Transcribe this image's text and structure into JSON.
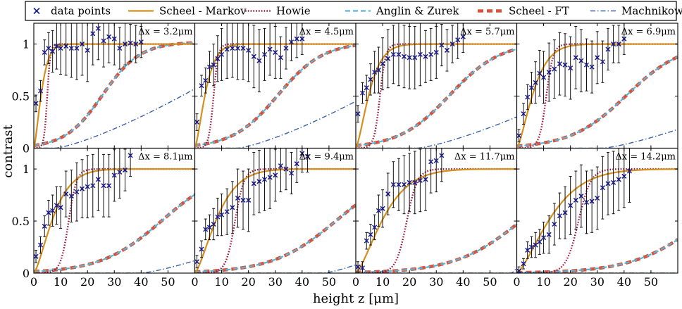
{
  "legend": {
    "entries": [
      {
        "key": "data",
        "label": "data points",
        "color": "#1a1a8c",
        "style": "marker-x"
      },
      {
        "key": "markov",
        "label": "Scheel - Markov",
        "color": "#d4901c",
        "style": "solid"
      },
      {
        "key": "howie",
        "label": "Howie",
        "color": "#9b1b3c",
        "style": "dotted"
      },
      {
        "key": "anglin",
        "label": "Anglin & Zurek",
        "color": "#5ab4d6",
        "style": "dashed"
      },
      {
        "key": "ft",
        "label": "Scheel - FT",
        "color": "#d9513a",
        "style": "thick-dashed"
      },
      {
        "key": "machnik",
        "label": "Machnikowski",
        "color": "#3a62a8",
        "style": "dashdot"
      }
    ]
  },
  "chart_data": {
    "type": "line",
    "xlabel": "height z [μm]",
    "ylabel": "contrast",
    "xlim": [
      0,
      60
    ],
    "ylim": [
      0,
      1.2
    ],
    "xticks": [
      0,
      10,
      20,
      30,
      40,
      50
    ],
    "yticks": [
      0,
      0.5,
      1
    ],
    "ytick_labels": [
      "0",
      "0.5",
      "1"
    ],
    "panels": [
      {
        "label": "Δx = 3.2μm",
        "markov_l": 3.2,
        "howie_z0": 5.0,
        "howie_w": 0.6,
        "ft_z0": 25.6,
        "ft_w": 7.0,
        "machnik": {
          "z0": 30,
          "max": 0.57,
          "end": 60
        },
        "data": [
          [
            0.8,
            0.43,
            0.08
          ],
          [
            2.5,
            0.55,
            0.1
          ],
          [
            4.0,
            0.92,
            0.12
          ],
          [
            5.5,
            0.96,
            0.15
          ],
          [
            7.0,
            0.93,
            0.2
          ],
          [
            8.5,
            0.98,
            0.22
          ],
          [
            10,
            0.96,
            0.25
          ],
          [
            12,
            0.98,
            0.28
          ],
          [
            14,
            0.96,
            0.28
          ],
          [
            16,
            0.96,
            0.3
          ],
          [
            18,
            1.0,
            0.3
          ],
          [
            20,
            0.94,
            0.3
          ],
          [
            22,
            1.1,
            0.3
          ],
          [
            24,
            1.15,
            0.3
          ],
          [
            26,
            1.03,
            0.25
          ],
          [
            28,
            1.07,
            0.25
          ],
          [
            30,
            1.05,
            0.25
          ],
          [
            32,
            0.96,
            0.2
          ],
          [
            34,
            1.0,
            0.2
          ],
          [
            36,
            1.01,
            0.18
          ],
          [
            38,
            1.0,
            0.18
          ],
          [
            40,
            1.02,
            0.15
          ]
        ]
      },
      {
        "label": "Δx = 4.5μm",
        "markov_l": 4.5,
        "howie_z0": 7.0,
        "howie_w": 0.9,
        "ft_z0": 31.0,
        "ft_w": 8.5,
        "machnik": {
          "z0": 38,
          "max": 0.45,
          "end": 60
        },
        "data": [
          [
            0.8,
            0.25,
            0.08
          ],
          [
            2.5,
            0.6,
            0.1
          ],
          [
            4.0,
            0.65,
            0.12
          ],
          [
            5.5,
            0.78,
            0.15
          ],
          [
            7.0,
            0.8,
            0.2
          ],
          [
            8.5,
            0.86,
            0.22
          ],
          [
            10,
            0.9,
            0.25
          ],
          [
            12,
            0.95,
            0.28
          ],
          [
            14,
            0.96,
            0.28
          ],
          [
            16,
            0.96,
            0.3
          ],
          [
            18,
            0.96,
            0.3
          ],
          [
            20,
            0.94,
            0.3
          ],
          [
            22,
            0.88,
            0.3
          ],
          [
            24,
            0.84,
            0.3
          ],
          [
            26,
            0.9,
            0.25
          ],
          [
            28,
            0.95,
            0.25
          ],
          [
            30,
            0.92,
            0.25
          ],
          [
            32,
            0.87,
            0.2
          ],
          [
            34,
            0.96,
            0.2
          ],
          [
            36,
            1.02,
            0.18
          ],
          [
            38,
            1.05,
            0.18
          ],
          [
            40,
            1.05,
            0.15
          ]
        ]
      },
      {
        "label": "Δx = 5.7μm",
        "markov_l": 5.7,
        "howie_z0": 9.0,
        "howie_w": 1.1,
        "ft_z0": 35.0,
        "ft_w": 9.5,
        "machnik": {
          "z0": 45,
          "max": 0.3,
          "end": 60
        },
        "data": [
          [
            0.8,
            0.33,
            0.08
          ],
          [
            2.5,
            0.53,
            0.1
          ],
          [
            4.0,
            0.58,
            0.12
          ],
          [
            5.5,
            0.66,
            0.15
          ],
          [
            7.0,
            0.73,
            0.2
          ],
          [
            8.5,
            0.75,
            0.22
          ],
          [
            10,
            0.81,
            0.25
          ],
          [
            12,
            0.86,
            0.28
          ],
          [
            14,
            0.9,
            0.28
          ],
          [
            16,
            0.9,
            0.3
          ],
          [
            18,
            0.88,
            0.3
          ],
          [
            20,
            0.87,
            0.3
          ],
          [
            22,
            0.87,
            0.3
          ],
          [
            24,
            0.9,
            0.3
          ],
          [
            26,
            0.88,
            0.25
          ],
          [
            28,
            0.9,
            0.25
          ],
          [
            30,
            0.92,
            0.25
          ],
          [
            32,
            0.99,
            0.2
          ],
          [
            34,
            0.94,
            0.2
          ],
          [
            36,
            1.0,
            0.18
          ],
          [
            38,
            1.04,
            0.18
          ],
          [
            40,
            1.07,
            0.15
          ]
        ]
      },
      {
        "label": "Δx = 6.9μm",
        "markov_l": 6.9,
        "howie_z0": 11.0,
        "howie_w": 1.3,
        "ft_z0": 41.0,
        "ft_w": 10.5,
        "machnik": {
          "z0": 54,
          "max": 0.18,
          "end": 60
        },
        "data": [
          [
            0.8,
            0.12,
            0.06
          ],
          [
            2.5,
            0.33,
            0.1
          ],
          [
            4.0,
            0.49,
            0.12
          ],
          [
            5.5,
            0.58,
            0.15
          ],
          [
            7.0,
            0.63,
            0.2
          ],
          [
            8.5,
            0.72,
            0.22
          ],
          [
            10,
            0.68,
            0.25
          ],
          [
            12,
            0.73,
            0.28
          ],
          [
            14,
            0.76,
            0.28
          ],
          [
            16,
            0.81,
            0.3
          ],
          [
            18,
            0.8,
            0.3
          ],
          [
            20,
            0.77,
            0.3
          ],
          [
            22,
            0.87,
            0.3
          ],
          [
            24,
            0.84,
            0.3
          ],
          [
            26,
            0.8,
            0.25
          ],
          [
            28,
            0.78,
            0.25
          ],
          [
            30,
            0.87,
            0.25
          ],
          [
            32,
            0.83,
            0.2
          ],
          [
            34,
            0.95,
            0.2
          ],
          [
            36,
            1.0,
            0.18
          ],
          [
            38,
            1.0,
            0.18
          ],
          [
            40,
            1.05,
            0.15
          ]
        ]
      },
      {
        "label": "Δx = 8.1μm",
        "markov_l": 8.1,
        "howie_z0": 13.0,
        "howie_w": 1.5,
        "ft_z0": 48.0,
        "ft_w": 11.5,
        "machnik": {
          "z0": 62,
          "max": 0.12,
          "end": 60
        },
        "data": [
          [
            0.8,
            0.16,
            0.06
          ],
          [
            2.5,
            0.27,
            0.08
          ],
          [
            4.0,
            0.45,
            0.1
          ],
          [
            5.5,
            0.58,
            0.12
          ],
          [
            7.0,
            0.6,
            0.15
          ],
          [
            8.5,
            0.65,
            0.18
          ],
          [
            10,
            0.63,
            0.2
          ],
          [
            12,
            0.76,
            0.22
          ],
          [
            14,
            0.74,
            0.25
          ],
          [
            16,
            0.78,
            0.28
          ],
          [
            18,
            0.81,
            0.28
          ],
          [
            20,
            0.83,
            0.3
          ],
          [
            22,
            0.84,
            0.3
          ],
          [
            24,
            0.9,
            0.3
          ],
          [
            26,
            0.84,
            0.3
          ],
          [
            28,
            0.84,
            0.3
          ],
          [
            30,
            0.94,
            0.25
          ],
          [
            32,
            0.97,
            0.25
          ],
          [
            34,
            0.99,
            0.2
          ],
          [
            36,
            1.13,
            0.2
          ]
        ]
      },
      {
        "label": "Δx = 9.4μm",
        "markov_l": 9.4,
        "howie_z0": 15.0,
        "howie_w": 1.7,
        "ft_z0": 53.0,
        "ft_w": 12.0,
        "machnik": {
          "z0": 70,
          "max": 0.08,
          "end": 60
        },
        "data": [
          [
            0.8,
            0.11,
            0.06
          ],
          [
            2.5,
            0.23,
            0.08
          ],
          [
            4.0,
            0.42,
            0.1
          ],
          [
            5.5,
            0.44,
            0.12
          ],
          [
            7.0,
            0.47,
            0.15
          ],
          [
            8.5,
            0.54,
            0.18
          ],
          [
            10,
            0.56,
            0.2
          ],
          [
            12,
            0.59,
            0.22
          ],
          [
            14,
            0.63,
            0.25
          ],
          [
            16,
            0.72,
            0.28
          ],
          [
            18,
            0.7,
            0.28
          ],
          [
            20,
            0.7,
            0.3
          ],
          [
            22,
            0.86,
            0.3
          ],
          [
            24,
            0.88,
            0.3
          ],
          [
            26,
            0.9,
            0.3
          ],
          [
            28,
            0.92,
            0.3
          ],
          [
            30,
            0.94,
            0.25
          ],
          [
            32,
            1.03,
            0.25
          ],
          [
            34,
            1.0,
            0.2
          ],
          [
            36,
            0.96,
            0.2
          ],
          [
            38,
            1.05,
            0.18
          ],
          [
            40,
            1.15,
            0.18
          ],
          [
            42,
            1.12,
            0.15
          ]
        ]
      },
      {
        "label": "Δx = 11.7μm",
        "markov_l": 11.7,
        "howie_z0": 19.0,
        "howie_w": 2.0,
        "ft_z0": 62.0,
        "ft_w": 12.5,
        "machnik": {
          "z0": 80,
          "max": 0.05,
          "end": 60
        },
        "data": [
          [
            0.8,
            0.06,
            0.05
          ],
          [
            2.5,
            0.05,
            0.06
          ],
          [
            4.0,
            0.31,
            0.08
          ],
          [
            5.5,
            0.37,
            0.1
          ],
          [
            7.0,
            0.44,
            0.12
          ],
          [
            8.5,
            0.6,
            0.15
          ],
          [
            10,
            0.62,
            0.18
          ],
          [
            12,
            0.76,
            0.2
          ],
          [
            14,
            0.85,
            0.22
          ],
          [
            16,
            0.85,
            0.25
          ],
          [
            18,
            0.85,
            0.28
          ],
          [
            20,
            0.87,
            0.28
          ],
          [
            22,
            0.87,
            0.3
          ],
          [
            24,
            0.89,
            0.3
          ],
          [
            26,
            0.9,
            0.3
          ],
          [
            28,
            1.07,
            0.3
          ],
          [
            30,
            1.08,
            0.3
          ],
          [
            32,
            1.13,
            0.25
          ]
        ]
      },
      {
        "label": "Δx = 14.2μm",
        "markov_l": 14.2,
        "howie_z0": 23.0,
        "howie_w": 2.3,
        "ft_z0": 70.0,
        "ft_w": 13.0,
        "machnik": {
          "z0": 90,
          "max": 0.03,
          "end": 60
        },
        "data": [
          [
            0.8,
            0.02,
            0.04
          ],
          [
            2.5,
            0.09,
            0.05
          ],
          [
            4.0,
            0.22,
            0.08
          ],
          [
            5.5,
            0.25,
            0.1
          ],
          [
            7.0,
            0.27,
            0.12
          ],
          [
            8.5,
            0.3,
            0.12
          ],
          [
            10,
            0.34,
            0.15
          ],
          [
            12,
            0.37,
            0.18
          ],
          [
            14,
            0.47,
            0.2
          ],
          [
            16,
            0.55,
            0.22
          ],
          [
            18,
            0.58,
            0.25
          ],
          [
            20,
            0.65,
            0.28
          ],
          [
            22,
            0.7,
            0.28
          ],
          [
            24,
            0.74,
            0.3
          ],
          [
            26,
            0.68,
            0.3
          ],
          [
            28,
            0.69,
            0.3
          ],
          [
            30,
            0.72,
            0.3
          ],
          [
            32,
            0.82,
            0.3
          ],
          [
            34,
            0.86,
            0.3
          ],
          [
            36,
            0.87,
            0.3
          ],
          [
            38,
            0.9,
            0.3
          ],
          [
            40,
            0.93,
            0.3
          ],
          [
            42,
            0.98,
            0.3
          ]
        ]
      }
    ]
  }
}
